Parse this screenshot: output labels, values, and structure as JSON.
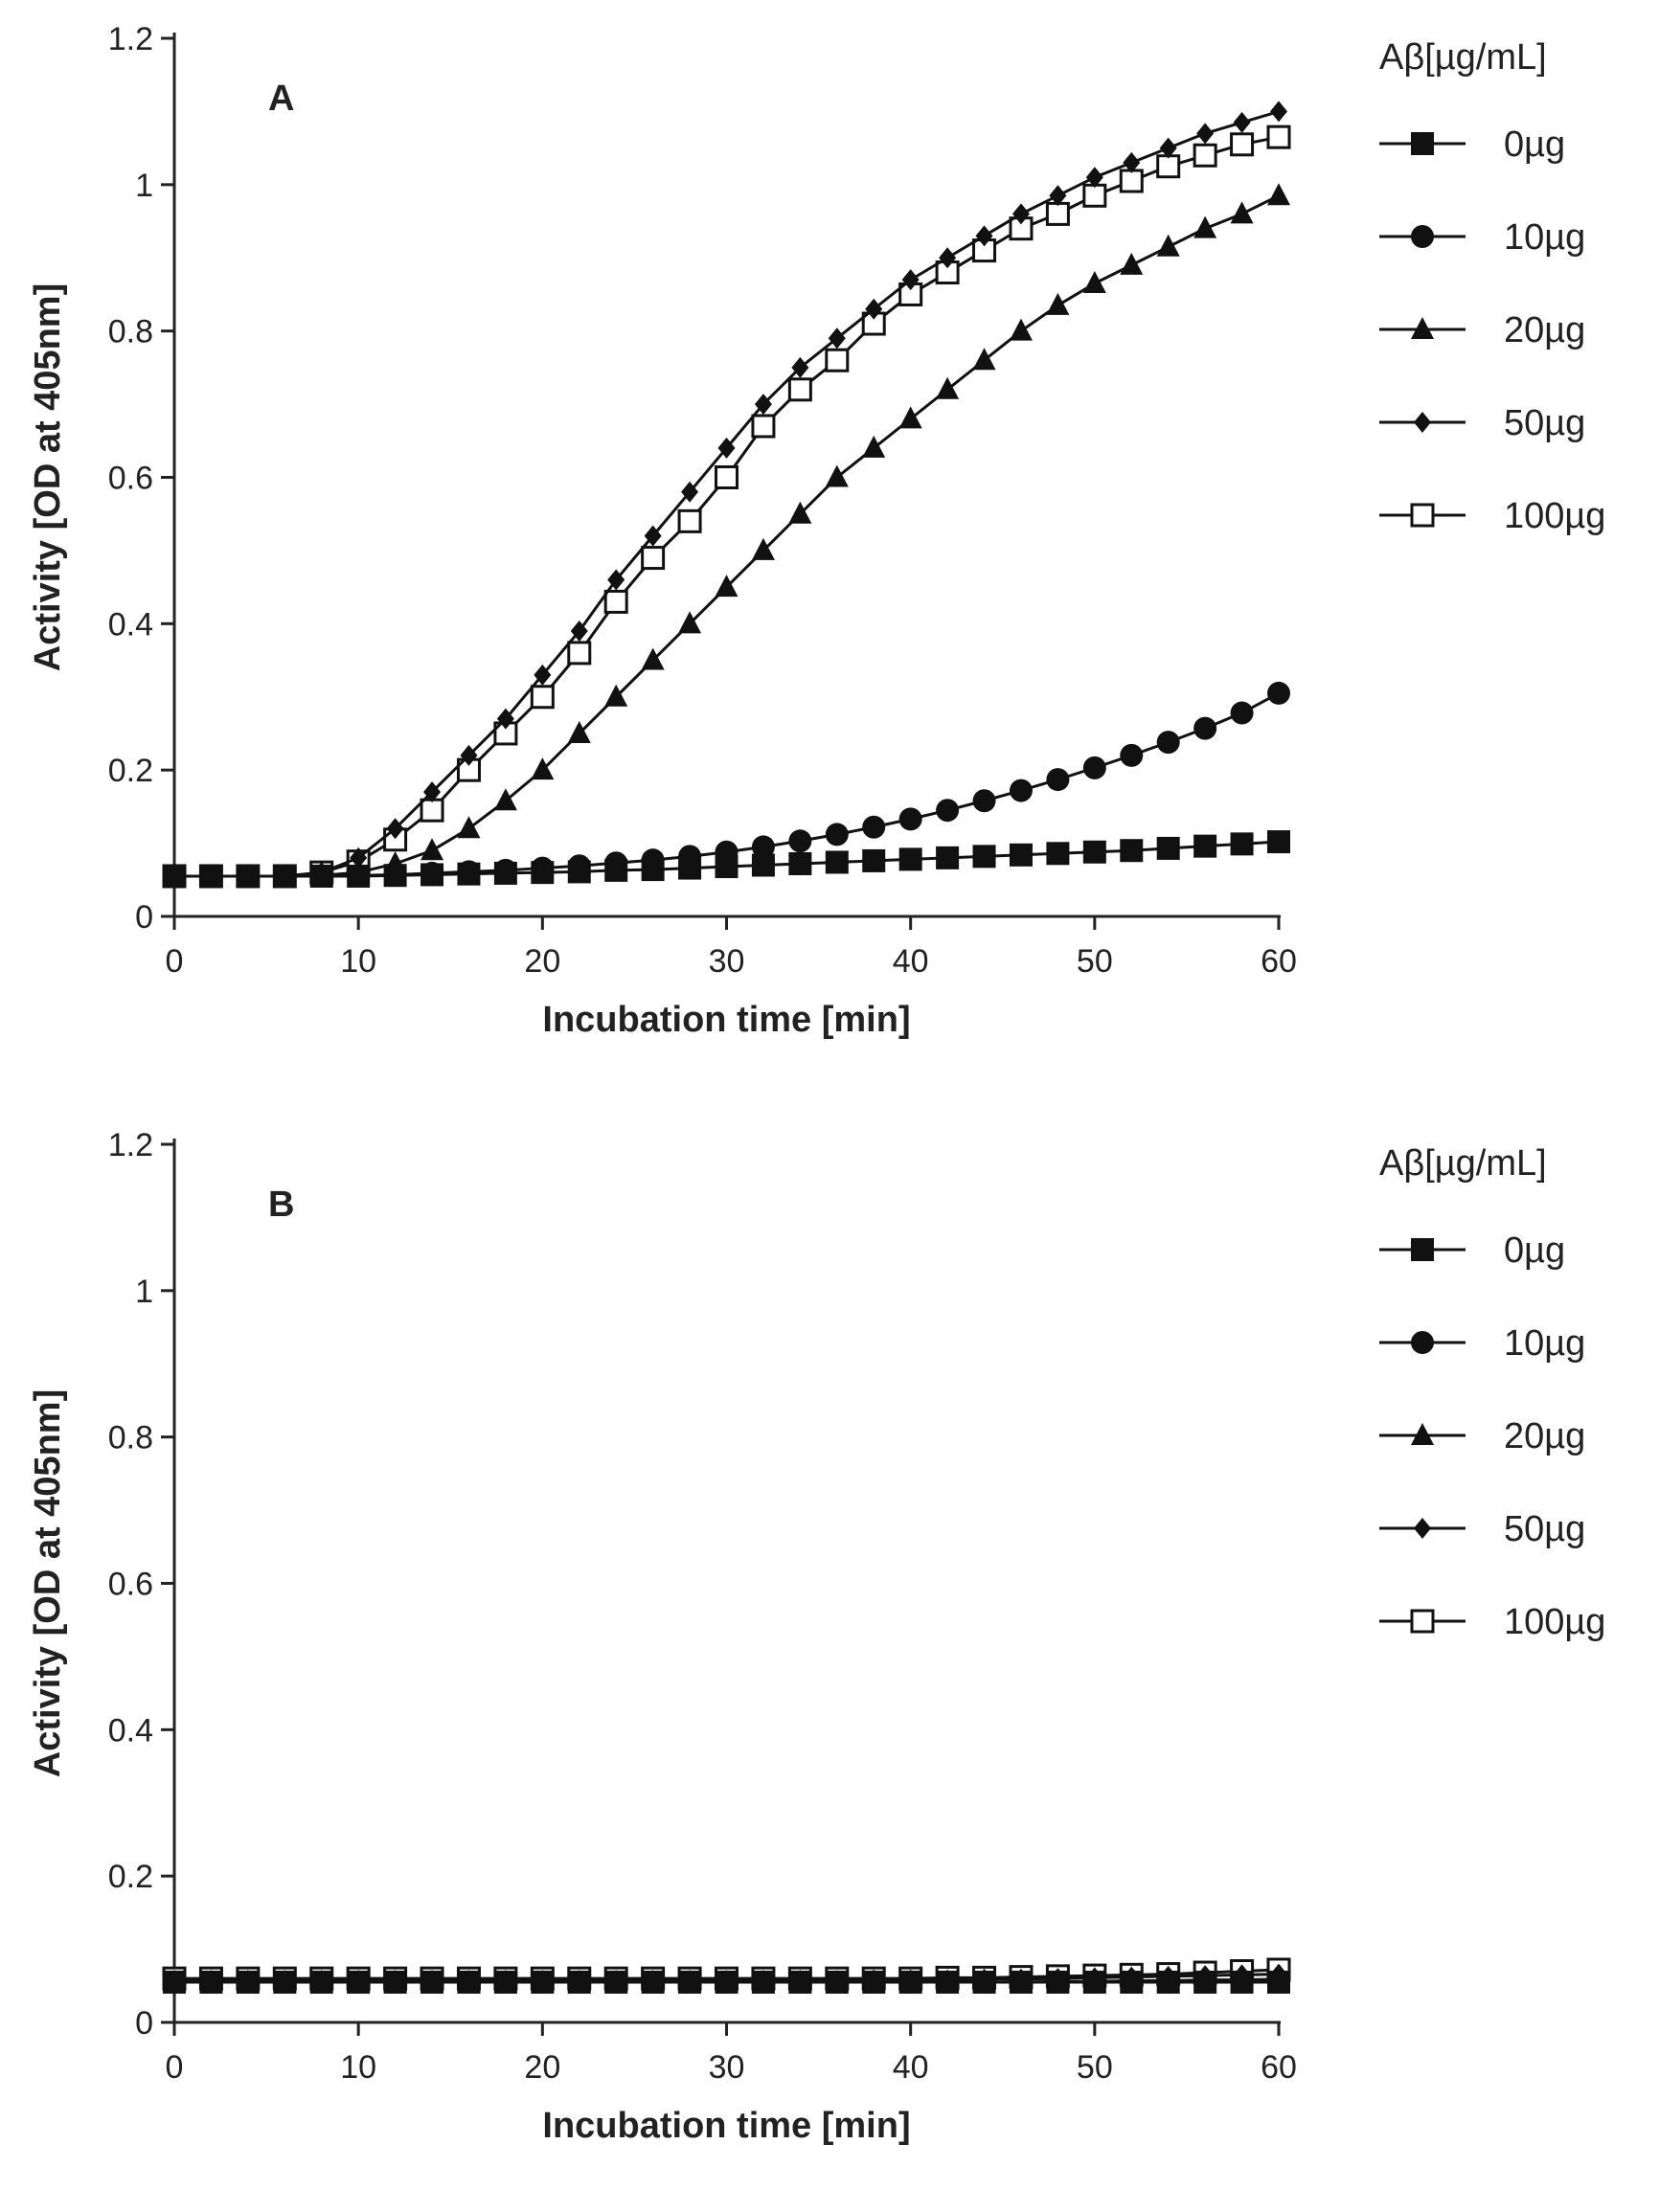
{
  "chart_data": [
    {
      "type": "line",
      "panel": "A",
      "title": "",
      "xlabel": "Incubation time [min]",
      "ylabel": "Activity [OD at 405nm]",
      "xlim": [
        0,
        60
      ],
      "ylim": [
        0,
        1.2
      ],
      "xticks": [
        "0",
        "10",
        "20",
        "30",
        "40",
        "50",
        "60"
      ],
      "yticks": [
        "0",
        "0.2",
        "0.4",
        "0.6",
        "0.8",
        "1",
        "1.2"
      ],
      "legend_title": "Aβ[µg/mL]",
      "legend_position": "right",
      "x": [
        0,
        2,
        4,
        6,
        8,
        10,
        12,
        14,
        16,
        18,
        20,
        22,
        24,
        26,
        28,
        30,
        32,
        34,
        36,
        38,
        40,
        42,
        44,
        46,
        48,
        50,
        52,
        54,
        56,
        58,
        60
      ],
      "series": [
        {
          "name": "0µg",
          "marker": "square",
          "values": [
            0.055,
            0.055,
            0.055,
            0.055,
            0.055,
            0.055,
            0.056,
            0.057,
            0.058,
            0.059,
            0.06,
            0.061,
            0.063,
            0.064,
            0.066,
            0.068,
            0.07,
            0.072,
            0.074,
            0.076,
            0.078,
            0.08,
            0.082,
            0.084,
            0.086,
            0.088,
            0.09,
            0.093,
            0.096,
            0.099,
            0.102
          ]
        },
        {
          "name": "10µg",
          "marker": "circle",
          "values": [
            0.055,
            0.055,
            0.055,
            0.055,
            0.055,
            0.056,
            0.057,
            0.059,
            0.061,
            0.063,
            0.066,
            0.069,
            0.073,
            0.077,
            0.082,
            0.088,
            0.095,
            0.103,
            0.112,
            0.122,
            0.133,
            0.145,
            0.158,
            0.172,
            0.187,
            0.203,
            0.22,
            0.238,
            0.257,
            0.278,
            0.305
          ]
        },
        {
          "name": "20µg",
          "marker": "triangle",
          "values": [
            0.055,
            0.055,
            0.055,
            0.055,
            0.056,
            0.06,
            0.072,
            0.09,
            0.12,
            0.158,
            0.2,
            0.25,
            0.3,
            0.35,
            0.4,
            0.45,
            0.5,
            0.55,
            0.6,
            0.64,
            0.68,
            0.72,
            0.76,
            0.8,
            0.835,
            0.865,
            0.89,
            0.915,
            0.94,
            0.96,
            0.985
          ]
        },
        {
          "name": "50µg",
          "marker": "diamond",
          "values": [
            0.055,
            0.055,
            0.055,
            0.055,
            0.06,
            0.08,
            0.12,
            0.17,
            0.22,
            0.27,
            0.33,
            0.39,
            0.46,
            0.52,
            0.58,
            0.64,
            0.7,
            0.75,
            0.79,
            0.83,
            0.87,
            0.9,
            0.93,
            0.96,
            0.985,
            1.01,
            1.03,
            1.05,
            1.07,
            1.085,
            1.1
          ]
        },
        {
          "name": "100µg",
          "marker": "open-square",
          "values": [
            0.055,
            0.055,
            0.055,
            0.055,
            0.06,
            0.075,
            0.105,
            0.145,
            0.2,
            0.25,
            0.3,
            0.36,
            0.43,
            0.49,
            0.54,
            0.6,
            0.67,
            0.72,
            0.76,
            0.81,
            0.85,
            0.88,
            0.91,
            0.94,
            0.96,
            0.985,
            1.005,
            1.025,
            1.04,
            1.055,
            1.065
          ]
        }
      ]
    },
    {
      "type": "line",
      "panel": "B",
      "title": "",
      "xlabel": "Incubation time [min]",
      "ylabel": "Activity [OD at 405nm]",
      "xlim": [
        0,
        60
      ],
      "ylim": [
        0,
        1.2
      ],
      "xticks": [
        "0",
        "10",
        "20",
        "30",
        "40",
        "50",
        "60"
      ],
      "yticks": [
        "0",
        "0.2",
        "0.4",
        "0.6",
        "0.8",
        "1",
        "1.2"
      ],
      "legend_title": "Aβ[µg/mL]",
      "legend_position": "right",
      "x": [
        0,
        2,
        4,
        6,
        8,
        10,
        12,
        14,
        16,
        18,
        20,
        22,
        24,
        26,
        28,
        30,
        32,
        34,
        36,
        38,
        40,
        42,
        44,
        46,
        48,
        50,
        52,
        54,
        56,
        58,
        60
      ],
      "series": [
        {
          "name": "0µg",
          "marker": "square",
          "values": [
            0.055,
            0.055,
            0.055,
            0.055,
            0.055,
            0.055,
            0.055,
            0.055,
            0.055,
            0.055,
            0.055,
            0.055,
            0.055,
            0.055,
            0.055,
            0.055,
            0.055,
            0.055,
            0.055,
            0.055,
            0.055,
            0.055,
            0.055,
            0.055,
            0.055,
            0.055,
            0.055,
            0.055,
            0.055,
            0.055,
            0.055
          ]
        },
        {
          "name": "10µg",
          "marker": "circle",
          "values": [
            0.055,
            0.055,
            0.055,
            0.055,
            0.055,
            0.055,
            0.055,
            0.055,
            0.055,
            0.055,
            0.055,
            0.055,
            0.055,
            0.055,
            0.055,
            0.055,
            0.055,
            0.055,
            0.055,
            0.055,
            0.055,
            0.055,
            0.055,
            0.055,
            0.055,
            0.055,
            0.055,
            0.055,
            0.055,
            0.055,
            0.055
          ]
        },
        {
          "name": "20µg",
          "marker": "triangle",
          "values": [
            0.055,
            0.055,
            0.055,
            0.055,
            0.055,
            0.055,
            0.055,
            0.055,
            0.055,
            0.055,
            0.055,
            0.055,
            0.055,
            0.055,
            0.055,
            0.055,
            0.055,
            0.055,
            0.055,
            0.055,
            0.055,
            0.055,
            0.055,
            0.055,
            0.056,
            0.056,
            0.057,
            0.057,
            0.058,
            0.058,
            0.059
          ]
        },
        {
          "name": "50µg",
          "marker": "diamond",
          "values": [
            0.057,
            0.057,
            0.057,
            0.057,
            0.057,
            0.057,
            0.057,
            0.057,
            0.057,
            0.057,
            0.057,
            0.057,
            0.057,
            0.057,
            0.057,
            0.057,
            0.057,
            0.057,
            0.057,
            0.058,
            0.058,
            0.058,
            0.059,
            0.059,
            0.06,
            0.061,
            0.062,
            0.063,
            0.064,
            0.065,
            0.066
          ]
        },
        {
          "name": "100µg",
          "marker": "open-square",
          "values": [
            0.06,
            0.06,
            0.06,
            0.06,
            0.06,
            0.06,
            0.06,
            0.06,
            0.06,
            0.06,
            0.06,
            0.06,
            0.06,
            0.06,
            0.06,
            0.06,
            0.06,
            0.06,
            0.06,
            0.06,
            0.06,
            0.061,
            0.061,
            0.062,
            0.063,
            0.064,
            0.065,
            0.066,
            0.068,
            0.07,
            0.072
          ]
        }
      ]
    }
  ]
}
